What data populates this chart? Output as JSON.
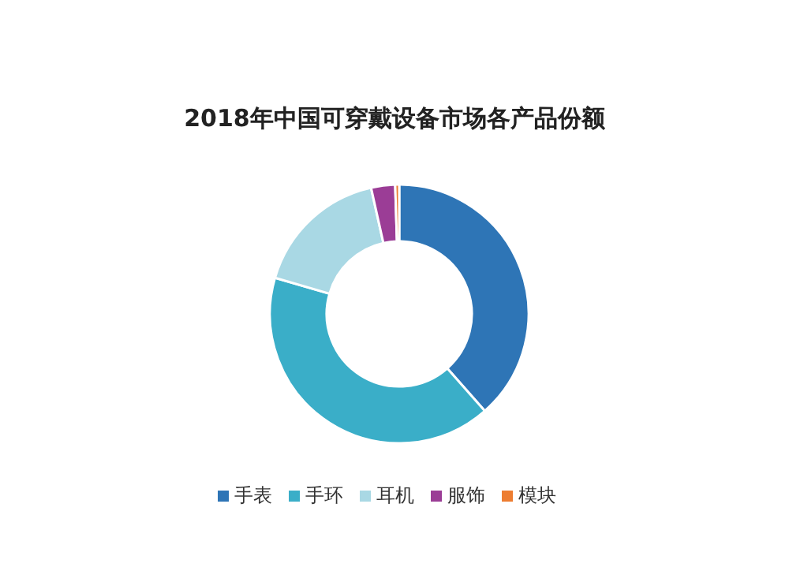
{
  "chart_data": {
    "type": "donut",
    "title": "2018年中国可穿戴设备市场各产品份额",
    "categories": [
      "手表",
      "手环",
      "耳机",
      "服饰",
      "模块"
    ],
    "values": [
      38.5,
      41,
      17,
      3,
      0.5
    ],
    "colors": [
      "#2e75b6",
      "#3aaec8",
      "#a9d8e4",
      "#9b3d96",
      "#ed7d31"
    ],
    "legend": "bottom"
  }
}
